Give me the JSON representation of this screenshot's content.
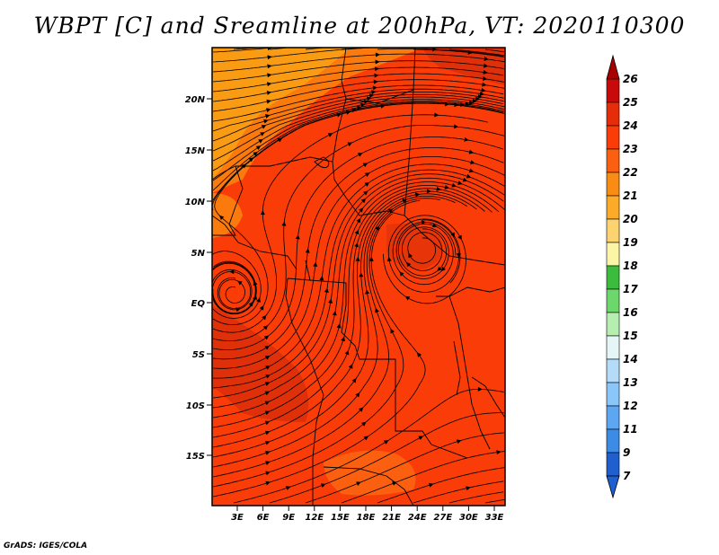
{
  "title": "WBPT [C] and Sreamline at 200hPa, VT: 2020110300",
  "credit": "GrADS: IGES/COLA",
  "map": {
    "lat_labels": [
      "20N",
      "15N",
      "10N",
      "5N",
      "EQ",
      "5S",
      "10S",
      "15S"
    ],
    "lon_labels": [
      "3E",
      "6E",
      "9E",
      "12E",
      "15E",
      "18E",
      "21E",
      "24E",
      "27E",
      "30E",
      "33E"
    ],
    "fill_colors": {
      "background": "#fa3c08",
      "light_orange": "#fa9b14",
      "orange": "#fb7a0e",
      "dark_red": "#e0300a"
    }
  },
  "colorbar": {
    "levels": [
      "26",
      "25",
      "24",
      "23",
      "22",
      "21",
      "20",
      "19",
      "18",
      "17",
      "16",
      "15",
      "14",
      "13",
      "12",
      "11",
      "9",
      "7"
    ],
    "colors": [
      "#a80000",
      "#c80a0a",
      "#e62d0a",
      "#fa3c08",
      "#fb6010",
      "#fa8c14",
      "#fbab28",
      "#fcd36e",
      "#fcf5a6",
      "#3cbc3c",
      "#6cd86c",
      "#b6eeb0",
      "#e6f6f6",
      "#b4dcf8",
      "#8ac6f8",
      "#5ca6f2",
      "#3c8ce6",
      "#1f5fd0"
    ]
  }
}
